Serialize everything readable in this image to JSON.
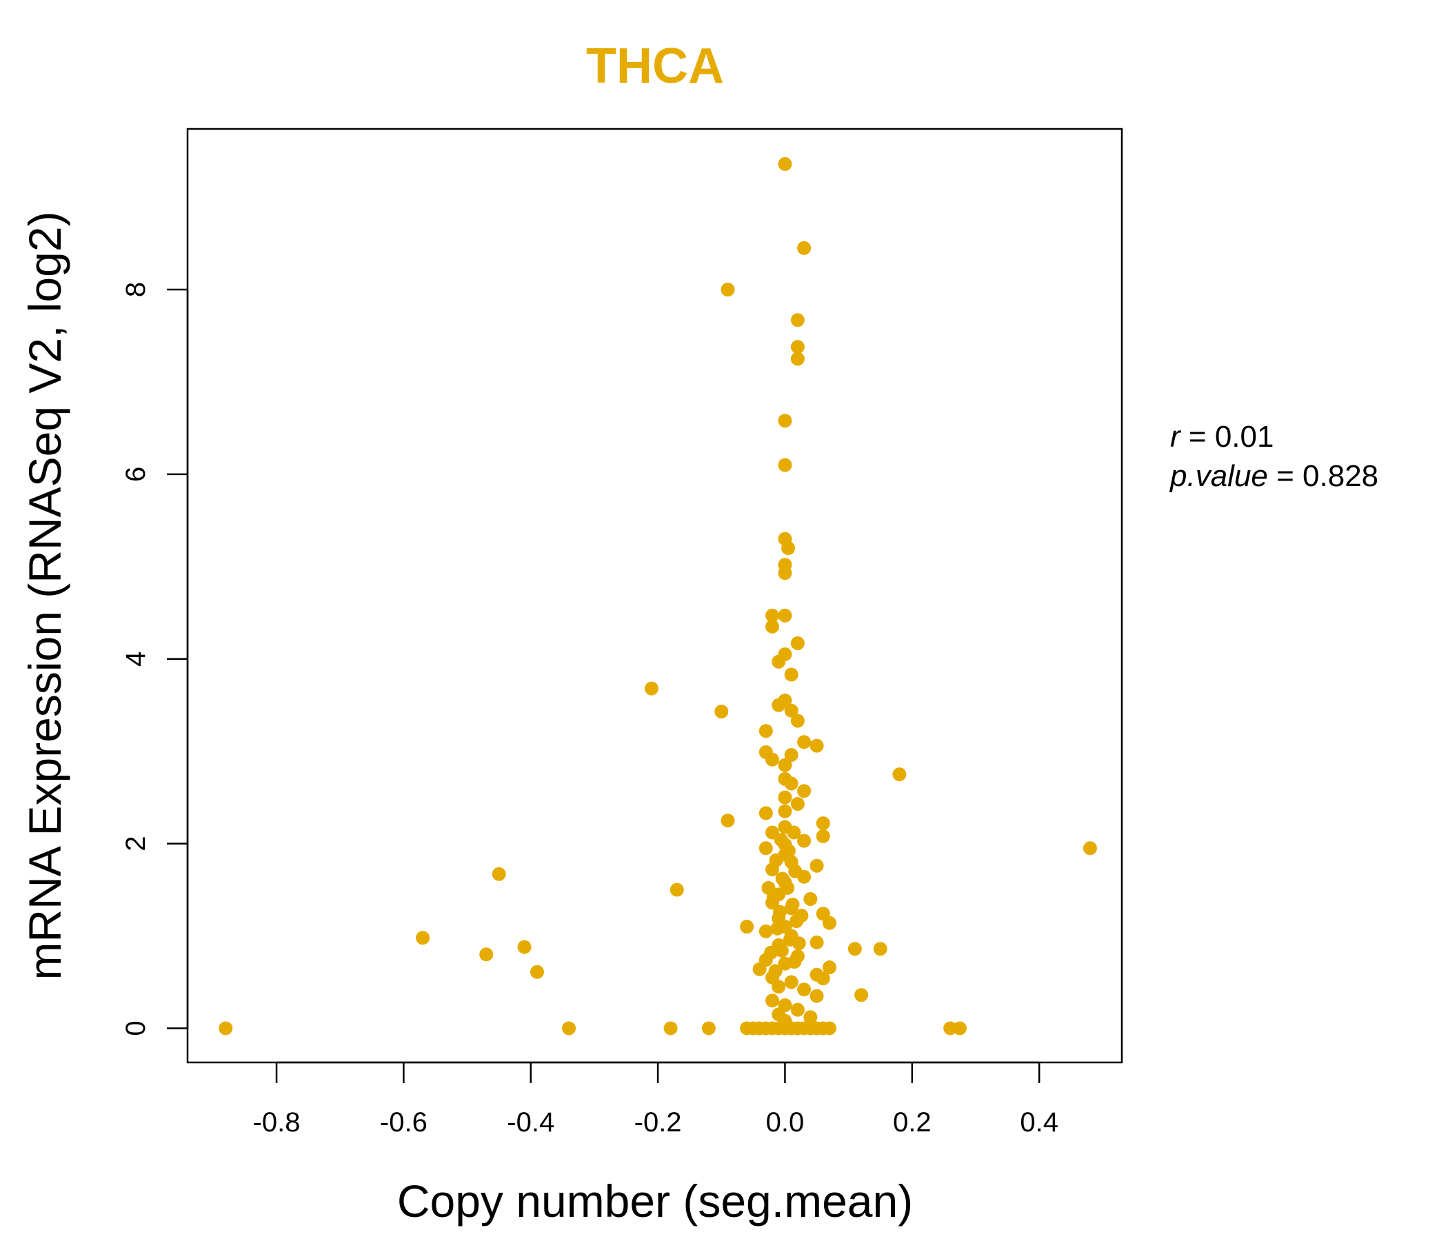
{
  "chart_data": {
    "type": "scatter",
    "title": "THCA",
    "xlabel": "Copy number (seg.mean)",
    "ylabel": "mRNA Expression (RNASeq V2, log2)",
    "xlim": [
      -0.94,
      0.53
    ],
    "ylim": [
      -0.37,
      9.74
    ],
    "x_ticks": [
      -0.8,
      -0.6,
      -0.4,
      -0.2,
      0.0,
      0.2,
      0.4
    ],
    "x_tick_labels": [
      "-0.8",
      "-0.6",
      "-0.4",
      "-0.2",
      "0.0",
      "0.2",
      "0.4"
    ],
    "y_ticks": [
      0,
      2,
      4,
      6,
      8
    ],
    "y_tick_labels": [
      "0",
      "2",
      "4",
      "6",
      "8"
    ],
    "grid": false,
    "stats": {
      "r_label": "r",
      "r_value": "0.01",
      "p_label": "p.value",
      "p_value": "0.828"
    },
    "series": [
      {
        "name": "THCA",
        "color": "#E5AB00",
        "points": [
          [
            0.0,
            9.36
          ],
          [
            0.03,
            8.45
          ],
          [
            -0.09,
            8.0
          ],
          [
            0.02,
            7.67
          ],
          [
            0.02,
            7.38
          ],
          [
            0.02,
            7.25
          ],
          [
            0.0,
            6.58
          ],
          [
            0.0,
            6.1
          ],
          [
            0.0,
            5.3
          ],
          [
            0.005,
            5.2
          ],
          [
            0.0,
            5.02
          ],
          [
            0.0,
            4.93
          ],
          [
            -0.02,
            4.47
          ],
          [
            0.0,
            4.47
          ],
          [
            -0.02,
            4.35
          ],
          [
            0.02,
            4.17
          ],
          [
            0.0,
            4.05
          ],
          [
            -0.01,
            3.97
          ],
          [
            0.01,
            3.83
          ],
          [
            -0.21,
            3.68
          ],
          [
            0.0,
            3.55
          ],
          [
            -0.01,
            3.5
          ],
          [
            0.01,
            3.44
          ],
          [
            -0.1,
            3.43
          ],
          [
            0.02,
            3.33
          ],
          [
            -0.03,
            3.22
          ],
          [
            0.03,
            3.1
          ],
          [
            0.05,
            3.06
          ],
          [
            -0.03,
            2.99
          ],
          [
            0.01,
            2.96
          ],
          [
            -0.02,
            2.91
          ],
          [
            0.0,
            2.85
          ],
          [
            0.18,
            2.75
          ],
          [
            0.0,
            2.7
          ],
          [
            0.01,
            2.65
          ],
          [
            0.03,
            2.57
          ],
          [
            0.0,
            2.5
          ],
          [
            0.02,
            2.43
          ],
          [
            0.0,
            2.35
          ],
          [
            -0.03,
            2.33
          ],
          [
            -0.09,
            2.25
          ],
          [
            0.06,
            2.22
          ],
          [
            0.0,
            2.18
          ],
          [
            -0.02,
            2.12
          ],
          [
            0.06,
            2.08
          ],
          [
            0.03,
            2.03
          ],
          [
            0.0,
            1.99
          ],
          [
            -0.03,
            1.95
          ],
          [
            0.48,
            1.95
          ],
          [
            0.0,
            1.88
          ],
          [
            0.01,
            1.8
          ],
          [
            0.05,
            1.76
          ],
          [
            -0.02,
            1.72
          ],
          [
            -0.45,
            1.67
          ],
          [
            0.03,
            1.64
          ],
          [
            0.0,
            1.58
          ],
          [
            -0.17,
            1.5
          ],
          [
            -0.01,
            1.45
          ],
          [
            0.04,
            1.4
          ],
          [
            -0.02,
            1.36
          ],
          [
            0.01,
            1.3
          ],
          [
            0.06,
            1.24
          ],
          [
            -0.01,
            1.19
          ],
          [
            0.07,
            1.14
          ],
          [
            0.0,
            1.1
          ],
          [
            -0.06,
            1.1
          ],
          [
            -0.03,
            1.05
          ],
          [
            0.01,
            1.0
          ],
          [
            -0.57,
            0.98
          ],
          [
            0.05,
            0.93
          ],
          [
            -0.01,
            0.9
          ],
          [
            -0.41,
            0.88
          ],
          [
            0.11,
            0.86
          ],
          [
            0.15,
            0.86
          ],
          [
            -0.47,
            0.8
          ],
          [
            0.02,
            0.78
          ],
          [
            -0.03,
            0.74
          ],
          [
            0.0,
            0.7
          ],
          [
            0.07,
            0.66
          ],
          [
            -0.04,
            0.64
          ],
          [
            -0.39,
            0.61
          ],
          [
            0.05,
            0.58
          ],
          [
            -0.02,
            0.55
          ],
          [
            0.06,
            0.54
          ],
          [
            0.01,
            0.5
          ],
          [
            -0.01,
            0.45
          ],
          [
            0.03,
            0.42
          ],
          [
            0.12,
            0.36
          ],
          [
            0.05,
            0.35
          ],
          [
            -0.02,
            0.3
          ],
          [
            0.0,
            0.25
          ],
          [
            0.02,
            0.2
          ],
          [
            -0.01,
            0.15
          ],
          [
            0.04,
            0.12
          ],
          [
            0.0,
            0.08
          ],
          [
            -0.88,
            0.0
          ],
          [
            -0.34,
            0.0
          ],
          [
            -0.18,
            0.0
          ],
          [
            -0.12,
            0.0
          ],
          [
            -0.06,
            0.0
          ],
          [
            -0.05,
            0.0
          ],
          [
            -0.04,
            0.0
          ],
          [
            -0.03,
            0.0
          ],
          [
            -0.02,
            0.0
          ],
          [
            -0.01,
            0.0
          ],
          [
            0.0,
            0.0
          ],
          [
            0.01,
            0.0
          ],
          [
            0.02,
            0.0
          ],
          [
            0.03,
            0.0
          ],
          [
            0.04,
            0.0
          ],
          [
            0.05,
            0.0
          ],
          [
            0.06,
            0.0
          ],
          [
            0.07,
            0.0
          ],
          [
            0.26,
            0.0
          ],
          [
            0.275,
            0.0
          ],
          [
            -0.015,
            0.62
          ],
          [
            0.015,
            0.72
          ],
          [
            -0.005,
            0.84
          ],
          [
            0.008,
            0.96
          ],
          [
            -0.012,
            1.08
          ],
          [
            0.018,
            1.16
          ],
          [
            -0.008,
            1.26
          ],
          [
            0.012,
            1.34
          ],
          [
            -0.018,
            1.42
          ],
          [
            0.004,
            1.52
          ],
          [
            -0.004,
            1.62
          ],
          [
            0.016,
            1.7
          ],
          [
            -0.014,
            1.82
          ],
          [
            0.006,
            1.92
          ],
          [
            -0.006,
            2.04
          ],
          [
            0.014,
            2.12
          ],
          [
            0.022,
            0.92
          ],
          [
            -0.022,
            0.82
          ],
          [
            0.026,
            1.22
          ],
          [
            -0.026,
            1.52
          ]
        ]
      }
    ]
  }
}
